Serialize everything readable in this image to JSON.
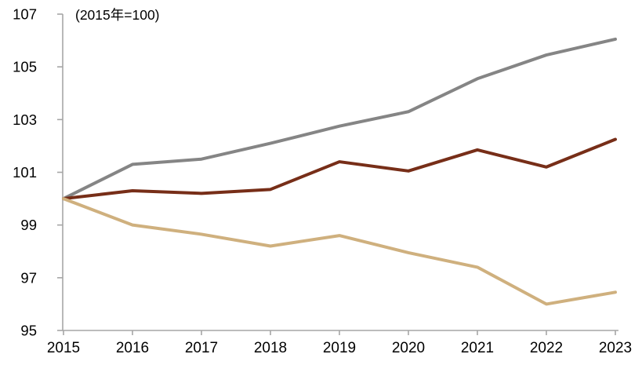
{
  "chart_data": {
    "type": "line",
    "title": "",
    "annotation": "(2015年=100)",
    "x": [
      2015,
      2016,
      2017,
      2018,
      2019,
      2020,
      2021,
      2022,
      2023
    ],
    "series": [
      {
        "name": "gray-line",
        "color": "#858585",
        "values": [
          100,
          101.3,
          101.5,
          102.1,
          102.75,
          103.3,
          104.55,
          105.45,
          106.05
        ]
      },
      {
        "name": "dark-red-line",
        "color": "#772E18",
        "values": [
          100,
          100.3,
          100.2,
          100.35,
          101.4,
          101.05,
          101.85,
          101.2,
          102.25
        ]
      },
      {
        "name": "tan-line",
        "color": "#CFB07E",
        "values": [
          100,
          99.0,
          98.65,
          98.2,
          98.6,
          97.95,
          97.4,
          96.0,
          96.45
        ]
      }
    ],
    "ylim": [
      95,
      107
    ],
    "yticks": [
      95,
      97,
      99,
      101,
      103,
      105,
      107
    ],
    "xtick_labels": [
      "2015",
      "2016",
      "2017",
      "2018",
      "2019",
      "2020",
      "2021",
      "2022",
      "2023"
    ],
    "grid": false,
    "legend": "none",
    "axis_color": "#A6A6A6",
    "tick_label_color": "#000000"
  }
}
